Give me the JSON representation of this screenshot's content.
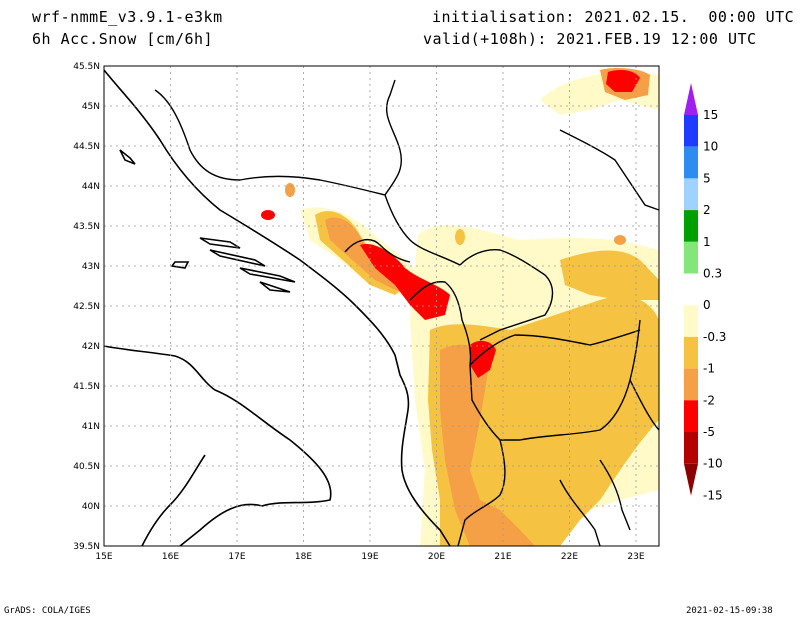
{
  "header": {
    "model": "wrf-nmmE_v3.9.1-e3km",
    "variable": "6h Acc.Snow [cm/6h]",
    "init": "initialisation: 2021.02.15.  00:00 UTC",
    "valid": "valid(+108h): 2021.FEB.19 12:00 UTC"
  },
  "map": {
    "lon_labels": [
      "15E",
      "16E",
      "17E",
      "18E",
      "19E",
      "20E",
      "21E",
      "22E",
      "23E"
    ],
    "lat_labels": [
      "45.5N",
      "45N",
      "44.5N",
      "44N",
      "43.5N",
      "43N",
      "42.5N",
      "42N",
      "41.5N",
      "41N",
      "40.5N",
      "40N",
      "39.5N"
    ]
  },
  "legend": {
    "labels": [
      "15",
      "10",
      "5",
      "2",
      "1",
      "0.3",
      "0",
      "-0.3",
      "-1",
      "-2",
      "-5",
      "-10",
      "-15"
    ],
    "colors": [
      "#a01ef0",
      "#1e3cff",
      "#2e8cf0",
      "#a0d2ff",
      "#00a000",
      "#82e678",
      "#ffffff",
      "#fffac8",
      "#f5c341",
      "#f5a046",
      "#ff0000",
      "#b40000",
      "#8c0000"
    ]
  },
  "footer": {
    "left": "GrADS: COLA/IGES",
    "right": "2021-02-15-09:38"
  }
}
